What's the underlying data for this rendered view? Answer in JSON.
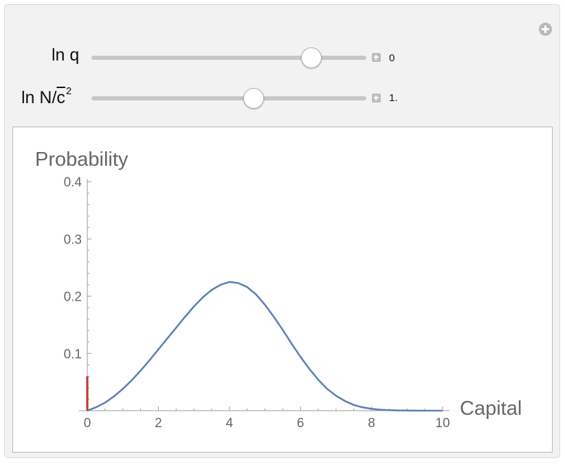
{
  "controls": {
    "ln_q": {
      "label": "ln q",
      "value_text": "0",
      "position": 0.8
    },
    "ln_n": {
      "label_main": "ln N/",
      "label_bar": "c",
      "label_sup": "2",
      "value_text": "1.",
      "position": 0.59
    }
  },
  "icons": {
    "panel_plus": "plus-circle-icon",
    "expander": "plus-square-icon"
  },
  "chart_data": {
    "type": "line",
    "ylabel": "Probability",
    "xlabel": "Capital",
    "xlim": [
      0,
      10
    ],
    "ylim": [
      0,
      0.4
    ],
    "x_ticks": [
      "0",
      "2",
      "4",
      "6",
      "8",
      "10"
    ],
    "y_ticks": [
      "0.1",
      "0.2",
      "0.3",
      "0.4"
    ],
    "series": [
      {
        "color": "#5e81b5",
        "x": [
          0,
          0.25,
          0.5,
          0.75,
          1,
          1.25,
          1.5,
          1.75,
          2,
          2.25,
          2.5,
          2.75,
          3,
          3.25,
          3.5,
          3.75,
          4,
          4.25,
          4.5,
          4.75,
          5,
          5.25,
          5.5,
          5.75,
          6,
          6.25,
          6.5,
          6.75,
          7,
          7.25,
          7.5,
          7.75,
          8,
          8.25,
          8.5,
          8.75,
          9,
          9.25,
          9.5,
          9.75,
          10
        ],
        "y": [
          0,
          0.006,
          0.014,
          0.025,
          0.038,
          0.053,
          0.07,
          0.088,
          0.107,
          0.126,
          0.145,
          0.164,
          0.182,
          0.198,
          0.211,
          0.22,
          0.225,
          0.223,
          0.216,
          0.203,
          0.185,
          0.164,
          0.141,
          0.117,
          0.094,
          0.073,
          0.054,
          0.038,
          0.026,
          0.017,
          0.01,
          0.0058,
          0.0032,
          0.0016,
          0.0008,
          0.0004,
          0.0002,
          0.0001,
          0,
          0,
          0
        ]
      }
    ],
    "spike": {
      "x": 0,
      "y": 0.06,
      "color": "#c33b2f"
    }
  }
}
